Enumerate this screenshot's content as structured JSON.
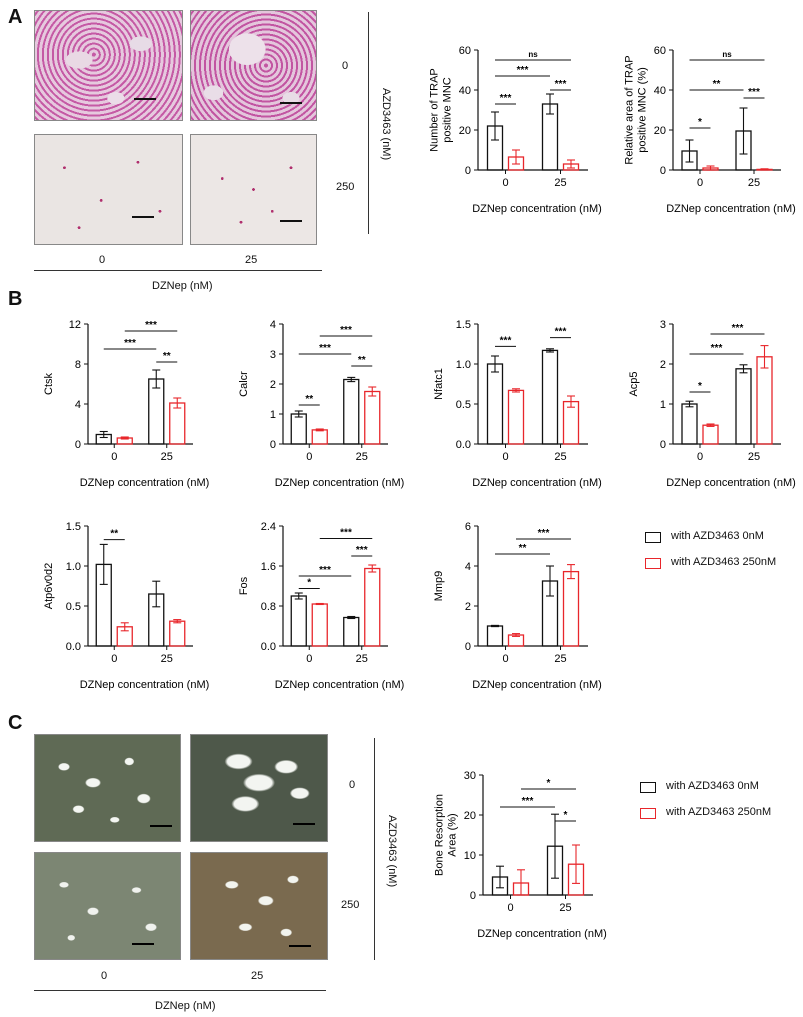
{
  "panels": {
    "a": {
      "letter": "A",
      "row_labels": [
        "0",
        "250"
      ],
      "col_labels": [
        "0",
        "25"
      ],
      "side_label": "AZD3463 (nM)",
      "bottom_label": "DZNep (nM)"
    },
    "b": {
      "letter": "B"
    },
    "c": {
      "letter": "C",
      "row_labels": [
        "0",
        "250"
      ],
      "col_labels": [
        "0",
        "25"
      ],
      "side_label": "AZD3463 (nM)",
      "bottom_label": "DZNep (nM)"
    }
  },
  "legend": {
    "items": [
      {
        "label": "with AZD3463 0nM",
        "color": "#111111"
      },
      {
        "label": "with AZD3463 250nM",
        "color": "#e8262b"
      }
    ]
  },
  "chart_data": [
    {
      "id": "a1",
      "type": "bar",
      "ylabel": "Number of TRAP positive MNC",
      "xlabel": "DZNep concentration (nM)",
      "categories": [
        "0",
        "25"
      ],
      "yticks": [
        "0",
        "20",
        "40",
        "60"
      ],
      "ylim": [
        0,
        60
      ],
      "series": [
        {
          "name": "with AZD3463 0nM",
          "values": [
            22,
            33
          ],
          "err": [
            7,
            5
          ]
        },
        {
          "name": "with AZD3463 250nM",
          "values": [
            6.5,
            3
          ],
          "err": [
            3.5,
            2
          ]
        }
      ],
      "sig": [
        {
          "a": [
            0,
            0
          ],
          "b": [
            0,
            1
          ],
          "label": "***",
          "y": 33
        },
        {
          "a": [
            0,
            0
          ],
          "b": [
            1,
            0
          ],
          "label": "***",
          "y": 47
        },
        {
          "a": [
            0,
            0
          ],
          "b": [
            1,
            1
          ],
          "label": "ns",
          "y": 55
        },
        {
          "a": [
            1,
            0
          ],
          "b": [
            1,
            1
          ],
          "label": "***",
          "y": 40
        }
      ]
    },
    {
      "id": "a2",
      "type": "bar",
      "ylabel": "Relative area of TRAP positive MNC (%)",
      "xlabel": "DZNep concentration (nM)",
      "categories": [
        "0",
        "25"
      ],
      "yticks": [
        "0",
        "20",
        "40",
        "60"
      ],
      "ylim": [
        0,
        60
      ],
      "series": [
        {
          "name": "with AZD3463 0nM",
          "values": [
            9.5,
            19.5
          ],
          "err": [
            5.5,
            11.5
          ]
        },
        {
          "name": "with AZD3463 250nM",
          "values": [
            1,
            0.3
          ],
          "err": [
            1,
            0.3
          ]
        }
      ],
      "sig": [
        {
          "a": [
            0,
            0
          ],
          "b": [
            0,
            1
          ],
          "label": "*",
          "y": 21
        },
        {
          "a": [
            0,
            0
          ],
          "b": [
            1,
            0
          ],
          "label": "**",
          "y": 40
        },
        {
          "a": [
            0,
            0
          ],
          "b": [
            1,
            1
          ],
          "label": "ns",
          "y": 55
        },
        {
          "a": [
            1,
            0
          ],
          "b": [
            1,
            1
          ],
          "label": "***",
          "y": 36
        }
      ]
    },
    {
      "id": "b1",
      "type": "bar",
      "ylabel": "Ctsk",
      "xlabel": "DZNep concentration (nM)",
      "categories": [
        "0",
        "25"
      ],
      "yticks": [
        "0",
        "4",
        "8",
        "12"
      ],
      "ylim": [
        0,
        12
      ],
      "series": [
        {
          "name": "with AZD3463 0nM",
          "values": [
            0.95,
            6.5
          ],
          "err": [
            0.3,
            0.9
          ]
        },
        {
          "name": "with AZD3463 250nM",
          "values": [
            0.6,
            4.1
          ],
          "err": [
            0.1,
            0.5
          ]
        }
      ],
      "sig": [
        {
          "a": [
            0,
            0
          ],
          "b": [
            1,
            0
          ],
          "label": "***",
          "y": 9.5
        },
        {
          "a": [
            0,
            1
          ],
          "b": [
            1,
            1
          ],
          "label": "***",
          "y": 11.3
        },
        {
          "a": [
            1,
            0
          ],
          "b": [
            1,
            1
          ],
          "label": "**",
          "y": 8.2
        }
      ]
    },
    {
      "id": "b2",
      "type": "bar",
      "ylabel": "Calcr",
      "xlabel": "DZNep concentration (nM)",
      "categories": [
        "0",
        "25"
      ],
      "yticks": [
        "0",
        "1",
        "2",
        "3",
        "4"
      ],
      "ylim": [
        0,
        4
      ],
      "series": [
        {
          "name": "with AZD3463 0nM",
          "values": [
            1.0,
            2.15
          ],
          "err": [
            0.1,
            0.07
          ]
        },
        {
          "name": "with AZD3463 250nM",
          "values": [
            0.47,
            1.75
          ],
          "err": [
            0.03,
            0.15
          ]
        }
      ],
      "sig": [
        {
          "a": [
            0,
            0
          ],
          "b": [
            0,
            1
          ],
          "label": "**",
          "y": 1.3
        },
        {
          "a": [
            0,
            0
          ],
          "b": [
            1,
            0
          ],
          "label": "***",
          "y": 3.0
        },
        {
          "a": [
            0,
            1
          ],
          "b": [
            1,
            1
          ],
          "label": "***",
          "y": 3.6
        },
        {
          "a": [
            1,
            0
          ],
          "b": [
            1,
            1
          ],
          "label": "**",
          "y": 2.6
        }
      ]
    },
    {
      "id": "b3",
      "type": "bar",
      "ylabel": "Nfatc1",
      "xlabel": "DZNep concentration (nM)",
      "categories": [
        "0",
        "25"
      ],
      "yticks": [
        "0.0",
        "0.5",
        "1.0",
        "1.5"
      ],
      "ylim": [
        0,
        1.5
      ],
      "series": [
        {
          "name": "with AZD3463 0nM",
          "values": [
            1.0,
            1.17
          ],
          "err": [
            0.1,
            0.02
          ]
        },
        {
          "name": "with AZD3463 250nM",
          "values": [
            0.67,
            0.53
          ],
          "err": [
            0.02,
            0.07
          ]
        }
      ],
      "sig": [
        {
          "a": [
            0,
            0
          ],
          "b": [
            0,
            1
          ],
          "label": "***",
          "y": 1.22
        },
        {
          "a": [
            1,
            0
          ],
          "b": [
            1,
            1
          ],
          "label": "***",
          "y": 1.33
        }
      ]
    },
    {
      "id": "b4",
      "type": "bar",
      "ylabel": "Acp5",
      "xlabel": "DZNep concentration (nM)",
      "categories": [
        "0",
        "25"
      ],
      "yticks": [
        "0",
        "1",
        "2",
        "3"
      ],
      "ylim": [
        0,
        3
      ],
      "series": [
        {
          "name": "with AZD3463 0nM",
          "values": [
            1.0,
            1.88
          ],
          "err": [
            0.07,
            0.1
          ]
        },
        {
          "name": "with AZD3463 250nM",
          "values": [
            0.47,
            2.18
          ],
          "err": [
            0.03,
            0.28
          ]
        }
      ],
      "sig": [
        {
          "a": [
            0,
            0
          ],
          "b": [
            0,
            1
          ],
          "label": "*",
          "y": 1.3
        },
        {
          "a": [
            0,
            0
          ],
          "b": [
            1,
            0
          ],
          "label": "***",
          "y": 2.25
        },
        {
          "a": [
            0,
            1
          ],
          "b": [
            1,
            1
          ],
          "label": "***",
          "y": 2.75
        }
      ]
    },
    {
      "id": "b5",
      "type": "bar",
      "ylabel": "Atp6v0d2",
      "xlabel": "DZNep concentration (nM)",
      "categories": [
        "0",
        "25"
      ],
      "yticks": [
        "0.0",
        "0.5",
        "1.0",
        "1.5"
      ],
      "ylim": [
        0,
        1.5
      ],
      "series": [
        {
          "name": "with AZD3463 0nM",
          "values": [
            1.02,
            0.65
          ],
          "err": [
            0.25,
            0.16
          ]
        },
        {
          "name": "with AZD3463 250nM",
          "values": [
            0.24,
            0.31
          ],
          "err": [
            0.05,
            0.02
          ]
        }
      ],
      "sig": [
        {
          "a": [
            0,
            0
          ],
          "b": [
            0,
            1
          ],
          "label": "**",
          "y": 1.33
        }
      ]
    },
    {
      "id": "b6",
      "type": "bar",
      "ylabel": "Fos",
      "xlabel": "DZNep concentration (nM)",
      "categories": [
        "0",
        "25"
      ],
      "yticks": [
        "0.0",
        "0.8",
        "1.6",
        "2.4"
      ],
      "ylim": [
        0,
        2.4
      ],
      "series": [
        {
          "name": "with AZD3463 0nM",
          "values": [
            1.0,
            0.57
          ],
          "err": [
            0.06,
            0.02
          ]
        },
        {
          "name": "with AZD3463 250nM",
          "values": [
            0.84,
            1.55
          ],
          "err": [
            0.01,
            0.07
          ]
        }
      ],
      "sig": [
        {
          "a": [
            0,
            0
          ],
          "b": [
            0,
            1
          ],
          "label": "*",
          "y": 1.15
        },
        {
          "a": [
            0,
            0
          ],
          "b": [
            1,
            0
          ],
          "label": "***",
          "y": 1.4
        },
        {
          "a": [
            0,
            1
          ],
          "b": [
            1,
            1
          ],
          "label": "***",
          "y": 2.15
        },
        {
          "a": [
            1,
            0
          ],
          "b": [
            1,
            1
          ],
          "label": "***",
          "y": 1.8
        }
      ]
    },
    {
      "id": "b7",
      "type": "bar",
      "ylabel": "Mmp9",
      "xlabel": "DZNep concentration (nM)",
      "categories": [
        "0",
        "25"
      ],
      "yticks": [
        "0",
        "2",
        "4",
        "6"
      ],
      "ylim": [
        0,
        6
      ],
      "series": [
        {
          "name": "with AZD3463 0nM",
          "values": [
            1.0,
            3.25
          ],
          "err": [
            0.03,
            0.75
          ]
        },
        {
          "name": "with AZD3463 250nM",
          "values": [
            0.55,
            3.72
          ],
          "err": [
            0.07,
            0.35
          ]
        }
      ],
      "sig": [
        {
          "a": [
            0,
            0
          ],
          "b": [
            1,
            0
          ],
          "label": "**",
          "y": 4.6
        },
        {
          "a": [
            0,
            1
          ],
          "b": [
            1,
            1
          ],
          "label": "***",
          "y": 5.35
        }
      ]
    },
    {
      "id": "c1",
      "type": "bar",
      "ylabel": "Bone Resorption Area (%)",
      "xlabel": "DZNep concentration (nM)",
      "categories": [
        "0",
        "25"
      ],
      "yticks": [
        "0",
        "10",
        "20",
        "30"
      ],
      "ylim": [
        0,
        30
      ],
      "series": [
        {
          "name": "with AZD3463 0nM",
          "values": [
            4.5,
            12.2
          ],
          "err": [
            2.7,
            8.0
          ]
        },
        {
          "name": "with AZD3463 250nM",
          "values": [
            3.0,
            7.7
          ],
          "err": [
            3.3,
            4.8
          ]
        }
      ],
      "sig": [
        {
          "a": [
            0,
            0
          ],
          "b": [
            1,
            0
          ],
          "label": "***",
          "y": 22
        },
        {
          "a": [
            0,
            1
          ],
          "b": [
            1,
            1
          ],
          "label": "*",
          "y": 26.5
        },
        {
          "a": [
            1,
            0
          ],
          "b": [
            1,
            1
          ],
          "label": "*",
          "y": 18.5
        }
      ]
    }
  ]
}
